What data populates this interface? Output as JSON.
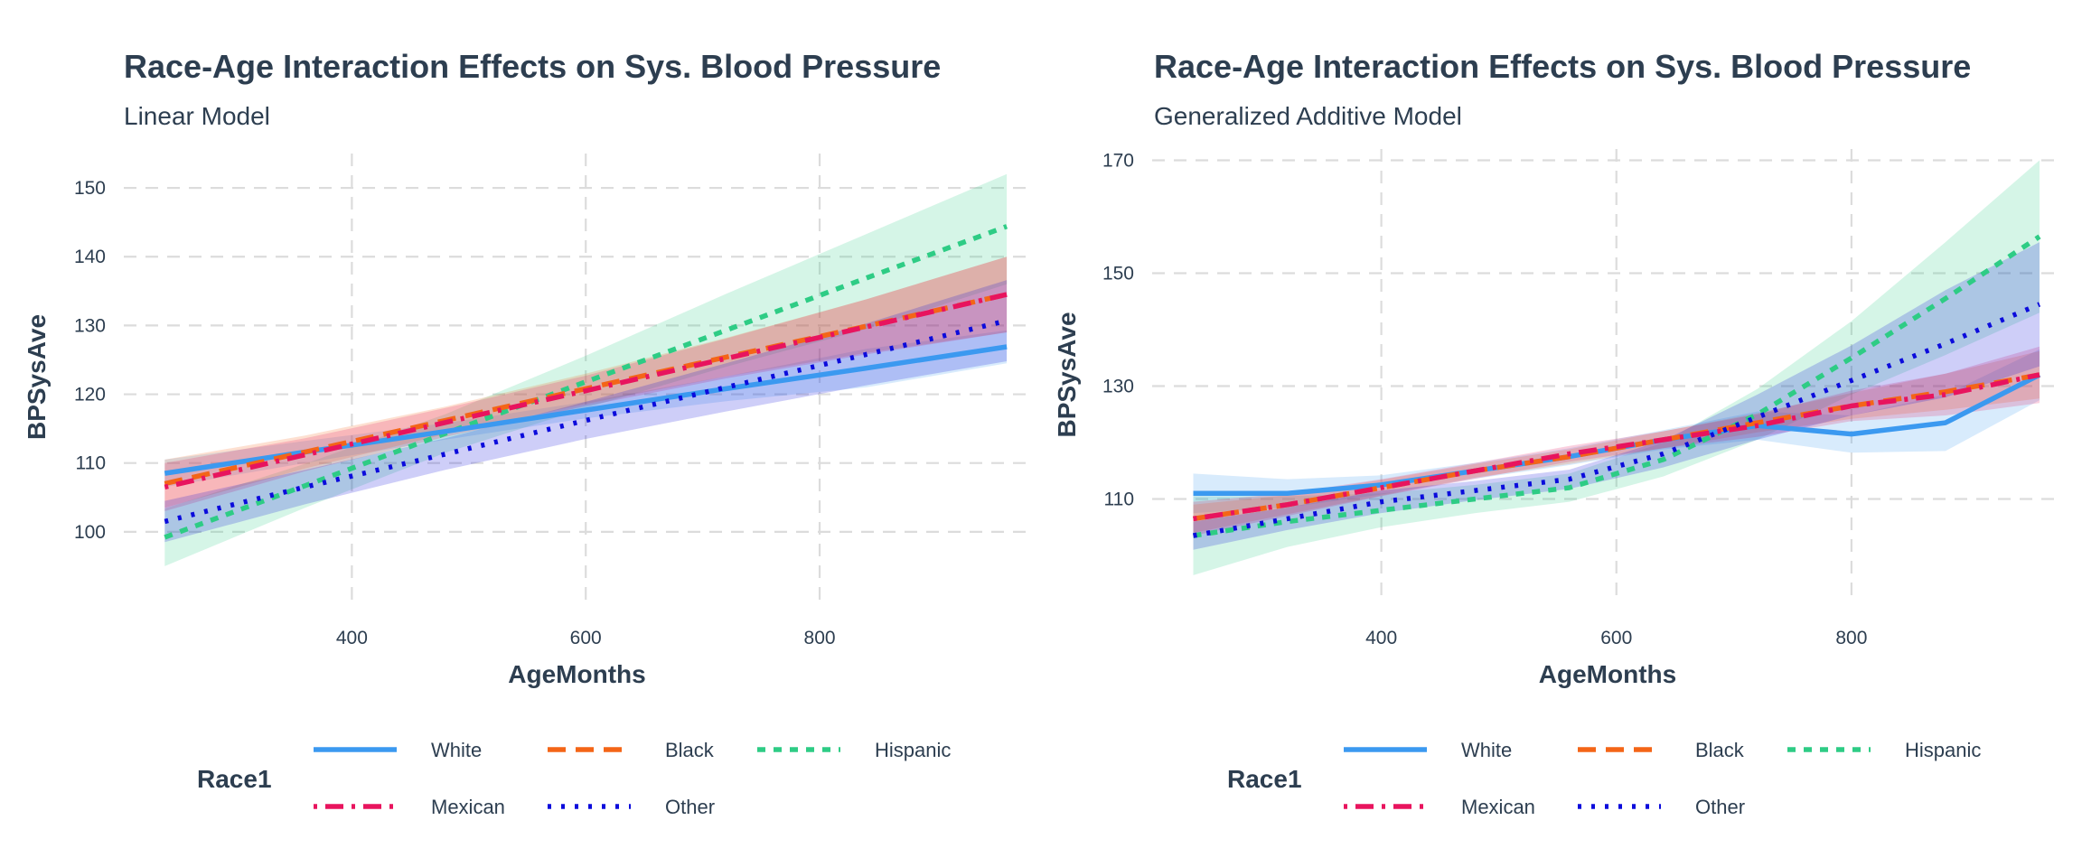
{
  "colors": {
    "White": "#3b99f0",
    "Black": "#f46517",
    "Hispanic": "#2ecc85",
    "Mexican": "#e8145e",
    "Other": "#0b0bdc"
  },
  "legend": {
    "title": "Race1",
    "items": [
      {
        "name": "White",
        "dash": "solid"
      },
      {
        "name": "Black",
        "dash": "dashed"
      },
      {
        "name": "Hispanic",
        "dash": "dotted"
      },
      {
        "name": "Mexican",
        "dash": "dotdash"
      },
      {
        "name": "Other",
        "dash": "finedotted"
      }
    ]
  },
  "chart_data": [
    {
      "type": "line",
      "title": "Race-Age Interaction Effects on Sys. Blood Pressure",
      "subtitle": "Linear Model",
      "xlabel": "AgeMonths",
      "ylabel": "BPSysAve",
      "xlim": [
        205,
        980
      ],
      "ylim": [
        90,
        155
      ],
      "xticks": [
        400,
        600,
        800
      ],
      "yticks": [
        100,
        110,
        120,
        130,
        140,
        150
      ],
      "grid": true,
      "legend_position": "bottom",
      "x": [
        240,
        360,
        480,
        600,
        720,
        840,
        960
      ],
      "series": [
        {
          "name": "White",
          "values": [
            108.5,
            111.6,
            114.6,
            117.7,
            120.8,
            123.8,
            126.9
          ],
          "lower": [
            106.5,
            110.0,
            113.4,
            116.5,
            119.0,
            121.0,
            124.5
          ],
          "upper": [
            110.5,
            113.2,
            115.8,
            118.9,
            122.6,
            126.6,
            129.3
          ]
        },
        {
          "name": "Black",
          "values": [
            107.0,
            111.6,
            116.2,
            120.8,
            125.4,
            129.9,
            134.5
          ],
          "lower": [
            103.5,
            109.2,
            114.2,
            118.6,
            122.6,
            126.0,
            129.0
          ],
          "upper": [
            110.5,
            114.0,
            118.2,
            123.0,
            128.2,
            133.8,
            140.0
          ]
        },
        {
          "name": "Hispanic",
          "values": [
            99.2,
            106.7,
            114.3,
            121.8,
            129.3,
            136.9,
            144.4
          ],
          "lower": [
            95.0,
            103.5,
            111.5,
            118.0,
            124.0,
            129.5,
            136.0
          ],
          "upper": [
            103.4,
            109.9,
            117.1,
            125.6,
            134.6,
            143.3,
            152.0
          ]
        },
        {
          "name": "Mexican",
          "values": [
            106.5,
            111.2,
            115.9,
            120.5,
            125.2,
            129.8,
            134.5
          ],
          "lower": [
            103.0,
            108.8,
            113.8,
            118.3,
            122.3,
            125.8,
            129.0
          ],
          "upper": [
            110.0,
            113.6,
            118.0,
            122.7,
            128.1,
            133.8,
            140.0
          ]
        },
        {
          "name": "Other",
          "values": [
            101.5,
            106.5,
            111.3,
            116.2,
            121.0,
            125.8,
            130.7
          ],
          "lower": [
            98.5,
            104.0,
            109.0,
            113.5,
            117.5,
            121.3,
            124.8
          ],
          "upper": [
            104.5,
            109.0,
            113.6,
            118.9,
            124.5,
            130.3,
            136.6
          ]
        }
      ]
    },
    {
      "type": "line",
      "title": "Race-Age Interaction Effects on Sys. Blood Pressure",
      "subtitle": "Generalized Additive Model",
      "xlabel": "AgeMonths",
      "ylabel": "BPSysAve",
      "xlim": [
        205,
        980
      ],
      "ylim": [
        92,
        172
      ],
      "xticks": [
        400,
        600,
        800
      ],
      "yticks": [
        110,
        130,
        150,
        170
      ],
      "grid": true,
      "legend_position": "bottom",
      "x": [
        240,
        320,
        400,
        480,
        560,
        640,
        720,
        800,
        880,
        960
      ],
      "series": [
        {
          "name": "White",
          "values": [
            111.0,
            111.0,
            112.5,
            115.0,
            117.5,
            120.5,
            123.0,
            121.5,
            123.5,
            132.0
          ],
          "lower": [
            107.5,
            108.5,
            110.8,
            113.6,
            116.0,
            118.8,
            120.5,
            118.2,
            118.5,
            127.5
          ],
          "upper": [
            114.5,
            113.5,
            114.2,
            116.4,
            119.0,
            122.2,
            125.5,
            124.8,
            128.5,
            136.5
          ]
        },
        {
          "name": "Black",
          "values": [
            106.5,
            109.0,
            112.0,
            115.0,
            117.5,
            120.5,
            123.5,
            126.5,
            129.0,
            132.0
          ],
          "lower": [
            104.0,
            107.3,
            110.6,
            113.8,
            116.2,
            119.0,
            121.8,
            124.2,
            125.8,
            127.8
          ],
          "upper": [
            109.0,
            110.7,
            113.4,
            116.2,
            118.8,
            122.0,
            125.2,
            128.8,
            132.2,
            136.2
          ]
        },
        {
          "name": "Hispanic",
          "values": [
            103.5,
            106.0,
            108.0,
            110.0,
            112.0,
            117.0,
            125.0,
            135.0,
            145.5,
            156.5
          ],
          "lower": [
            96.5,
            101.5,
            105.0,
            107.5,
            109.5,
            114.0,
            120.5,
            128.5,
            135.5,
            143.0
          ],
          "upper": [
            110.5,
            110.5,
            111.0,
            112.5,
            114.5,
            120.0,
            129.5,
            141.5,
            155.5,
            170.0
          ]
        },
        {
          "name": "Mexican",
          "values": [
            106.5,
            109.0,
            112.0,
            115.0,
            118.0,
            120.5,
            123.0,
            126.5,
            128.5,
            132.0
          ],
          "lower": [
            103.5,
            107.0,
            110.5,
            113.6,
            116.6,
            119.0,
            121.0,
            123.8,
            124.8,
            127.0
          ],
          "upper": [
            109.5,
            111.0,
            113.5,
            116.4,
            119.4,
            122.0,
            125.0,
            129.2,
            132.2,
            137.0
          ]
        },
        {
          "name": "Other",
          "values": [
            103.5,
            106.5,
            109.5,
            111.5,
            113.5,
            118.0,
            124.5,
            131.0,
            137.5,
            144.5
          ],
          "lower": [
            101.0,
            104.5,
            107.5,
            109.8,
            111.8,
            115.6,
            120.5,
            124.8,
            128.0,
            133.5
          ],
          "upper": [
            106.0,
            108.5,
            111.5,
            113.2,
            115.2,
            120.4,
            128.5,
            137.2,
            147.0,
            155.5
          ]
        }
      ]
    }
  ]
}
